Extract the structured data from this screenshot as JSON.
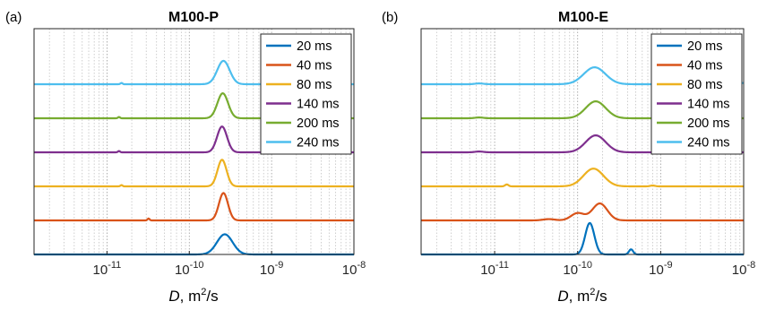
{
  "figure": {
    "panels": [
      {
        "tag": "(a)",
        "title": "M100-P"
      },
      {
        "tag": "(b)",
        "title": "M100-E"
      }
    ],
    "xlabel_italic": "D",
    "xlabel_rest": ", m",
    "xlabel_sup": "2",
    "xlabel_end": "/s"
  },
  "chart_data": [
    {
      "type": "line",
      "title": "M100-P",
      "panel_label": "(a)",
      "xlabel": "D, m2/s",
      "xscale": "log",
      "xlim": [
        1.3e-12,
        1e-08
      ],
      "x_ticks": [
        {
          "value": 1e-11,
          "base": "10",
          "exp": "-11"
        },
        {
          "value": 1e-10,
          "base": "10",
          "exp": "-10"
        },
        {
          "value": 1e-09,
          "base": "10",
          "exp": "-9"
        },
        {
          "value": 1e-08,
          "base": "10",
          "exp": "-8"
        }
      ],
      "grid": "vertical minor and major, dotted",
      "y_ticks": "none",
      "legend_position": "top-right",
      "series": [
        {
          "name": "20 ms",
          "color": "#0072BD",
          "baseline": 0,
          "peaks": [
            {
              "center": 2.7e-10,
              "sigma_decades": 0.095,
              "height": 1.25
            }
          ]
        },
        {
          "name": "40 ms",
          "color": "#D95319",
          "baseline": 1,
          "peaks": [
            {
              "center": 2.6e-10,
              "sigma_decades": 0.055,
              "height": 1.7
            },
            {
              "center": 3.2e-11,
              "sigma_decades": 0.012,
              "height": 0.12
            }
          ]
        },
        {
          "name": "80 ms",
          "color": "#EDB120",
          "baseline": 2,
          "peaks": [
            {
              "center": 2.5e-10,
              "sigma_decades": 0.055,
              "height": 1.65
            },
            {
              "center": 1.5e-11,
              "sigma_decades": 0.012,
              "height": 0.08
            }
          ]
        },
        {
          "name": "140 ms",
          "color": "#7E2F8E",
          "baseline": 3,
          "peaks": [
            {
              "center": 2.5e-10,
              "sigma_decades": 0.06,
              "height": 1.6
            },
            {
              "center": 1.4e-11,
              "sigma_decades": 0.012,
              "height": 0.08
            }
          ]
        },
        {
          "name": "200 ms",
          "color": "#77AC30",
          "baseline": 4,
          "peaks": [
            {
              "center": 2.55e-10,
              "sigma_decades": 0.065,
              "height": 1.55
            },
            {
              "center": 1.4e-11,
              "sigma_decades": 0.012,
              "height": 0.08
            }
          ]
        },
        {
          "name": "240 ms",
          "color": "#4DBEEE",
          "baseline": 5,
          "peaks": [
            {
              "center": 2.6e-10,
              "sigma_decades": 0.075,
              "height": 1.45
            },
            {
              "center": 1.5e-11,
              "sigma_decades": 0.012,
              "height": 0.08
            }
          ]
        }
      ]
    },
    {
      "type": "line",
      "title": "M100-E",
      "panel_label": "(b)",
      "xlabel": "D, m2/s",
      "xscale": "log",
      "xlim": [
        1.3e-12,
        1e-08
      ],
      "x_ticks": [
        {
          "value": 1e-11,
          "base": "10",
          "exp": "-11"
        },
        {
          "value": 1e-10,
          "base": "10",
          "exp": "-10"
        },
        {
          "value": 1e-09,
          "base": "10",
          "exp": "-9"
        },
        {
          "value": 1e-08,
          "base": "10",
          "exp": "-8"
        }
      ],
      "grid": "vertical minor and major, dotted",
      "y_ticks": "none",
      "legend_position": "top-right",
      "series": [
        {
          "name": "20 ms",
          "color": "#0072BD",
          "baseline": 0,
          "peaks": [
            {
              "center": 1.4e-10,
              "sigma_decades": 0.055,
              "height": 1.95
            },
            {
              "center": 4.4e-10,
              "sigma_decades": 0.025,
              "height": 0.32
            }
          ]
        },
        {
          "name": "40 ms",
          "color": "#D95319",
          "baseline": 1,
          "peaks": [
            {
              "center": 1.85e-10,
              "sigma_decades": 0.09,
              "height": 1.05
            },
            {
              "center": 1e-10,
              "sigma_decades": 0.08,
              "height": 0.45
            },
            {
              "center": 4.5e-11,
              "sigma_decades": 0.07,
              "height": 0.08
            }
          ]
        },
        {
          "name": "80 ms",
          "color": "#EDB120",
          "baseline": 2,
          "peaks": [
            {
              "center": 1.55e-10,
              "sigma_decades": 0.12,
              "height": 1.1
            },
            {
              "center": 1.4e-11,
              "sigma_decades": 0.02,
              "height": 0.12
            },
            {
              "center": 8e-10,
              "sigma_decades": 0.03,
              "height": 0.05
            }
          ]
        },
        {
          "name": "140 ms",
          "color": "#7E2F8E",
          "baseline": 3,
          "peaks": [
            {
              "center": 1.65e-10,
              "sigma_decades": 0.12,
              "height": 1.05
            },
            {
              "center": 6.5e-12,
              "sigma_decades": 0.05,
              "height": 0.05
            }
          ]
        },
        {
          "name": "200 ms",
          "color": "#77AC30",
          "baseline": 4,
          "peaks": [
            {
              "center": 1.65e-10,
              "sigma_decades": 0.12,
              "height": 1.05
            },
            {
              "center": 6.5e-12,
              "sigma_decades": 0.05,
              "height": 0.05
            }
          ]
        },
        {
          "name": "240 ms",
          "color": "#4DBEEE",
          "baseline": 5,
          "peaks": [
            {
              "center": 1.6e-10,
              "sigma_decades": 0.13,
              "height": 1.05
            },
            {
              "center": 6.5e-12,
              "sigma_decades": 0.05,
              "height": 0.05
            },
            {
              "center": 1e-08,
              "sigma_decades": 0.04,
              "height": 0.08
            }
          ]
        }
      ]
    }
  ]
}
